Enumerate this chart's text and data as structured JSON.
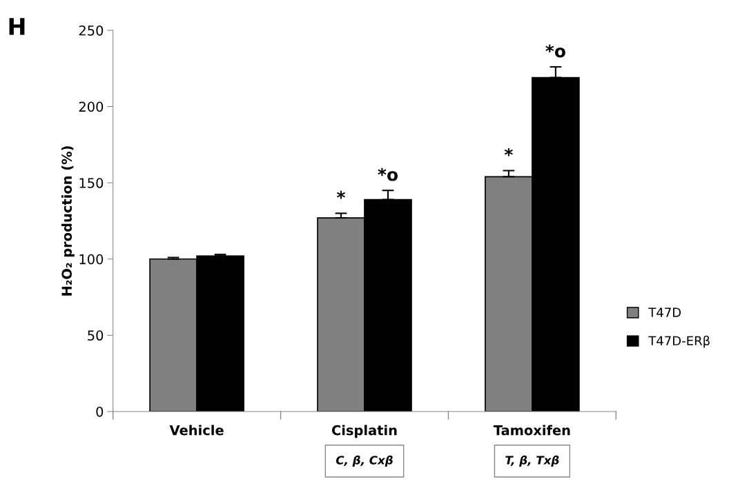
{
  "chart_data": {
    "type": "bar",
    "ylabel": "H₂O₂ production (%)",
    "categories": [
      "Vehicle",
      "Cisplatin",
      "Tamoxifen"
    ],
    "series": [
      {
        "name": "T47D",
        "color": "#808080",
        "values": [
          100,
          127,
          154
        ],
        "errors": [
          1,
          3,
          4
        ]
      },
      {
        "name": "T47D-ERβ",
        "color": "#000000",
        "values": [
          102,
          139,
          219
        ],
        "errors": [
          1,
          6,
          7
        ]
      }
    ],
    "ylim": [
      0,
      250
    ],
    "yticks": [
      0,
      50,
      100,
      150,
      200,
      250
    ],
    "grid": false,
    "legend": "right",
    "annotations": [
      "H",
      "*",
      "*o",
      "*",
      "*o",
      "C, β, Cxβ",
      "T, β, Txβ"
    ]
  }
}
